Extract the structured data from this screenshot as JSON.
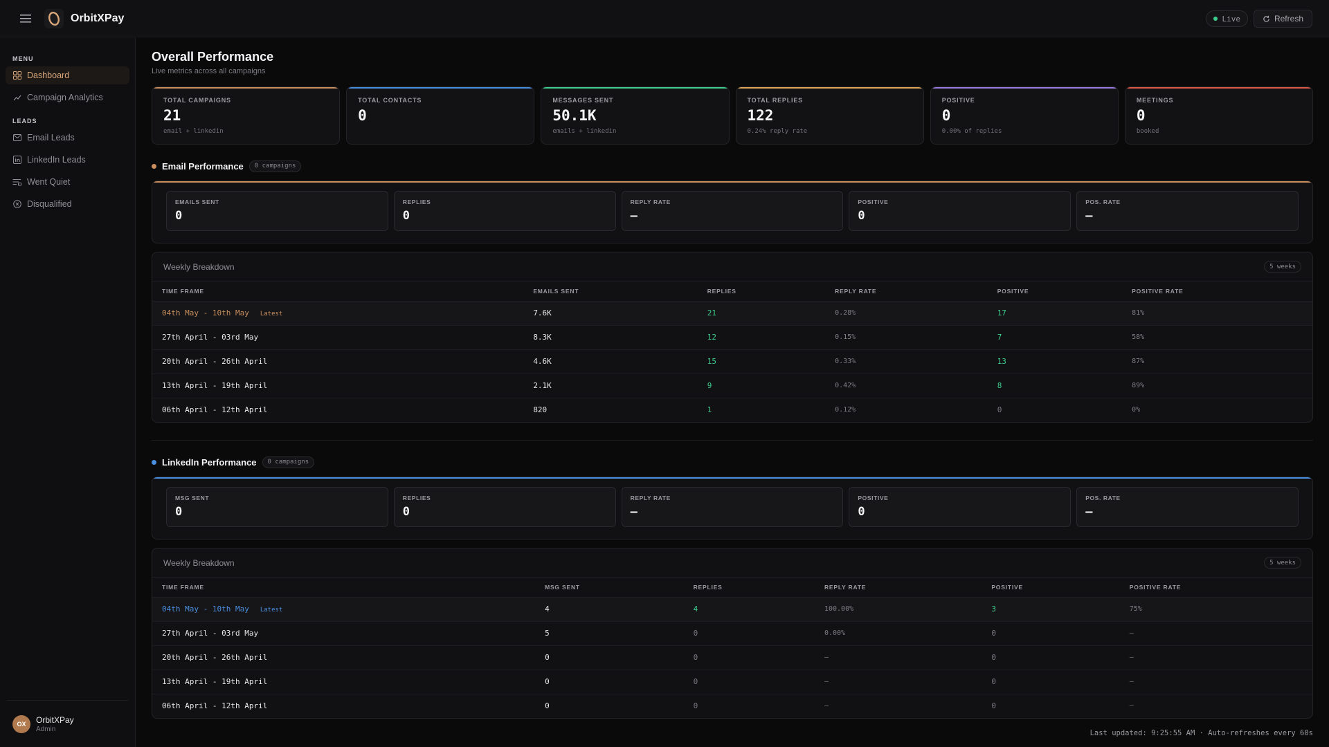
{
  "app": {
    "brand": "OrbitXPay"
  },
  "header": {
    "live_label": "Live",
    "refresh_label": "Refresh"
  },
  "sidebar": {
    "menu_label": "MENU",
    "leads_label": "LEADS",
    "menu_items": [
      {
        "label": "Dashboard",
        "icon": "grid-icon",
        "active": true
      },
      {
        "label": "Campaign Analytics",
        "icon": "trend-icon",
        "active": false
      }
    ],
    "lead_items": [
      {
        "label": "Email Leads",
        "icon": "mail-icon"
      },
      {
        "label": "LinkedIn Leads",
        "icon": "linkedin-icon"
      },
      {
        "label": "Went Quiet",
        "icon": "quiet-icon"
      },
      {
        "label": "Disqualified",
        "icon": "x-circle-icon"
      }
    ],
    "user": {
      "initials": "OX",
      "name": "OrbitXPay",
      "role": "Admin"
    }
  },
  "page": {
    "title": "Overall Performance",
    "subtitle": "Live metrics across all campaigns"
  },
  "stats": [
    {
      "label": "Total Campaigns",
      "value": "21",
      "sub": "email + linkedin",
      "accent": "#c98f5e"
    },
    {
      "label": "Total Contacts",
      "value": "0",
      "sub": "",
      "accent": "#4a8fe0"
    },
    {
      "label": "Messages Sent",
      "value": "50.1K",
      "sub": "emails + linkedin",
      "accent": "#3ecf8e"
    },
    {
      "label": "Total Replies",
      "value": "122",
      "sub": "0.24% reply rate",
      "accent": "#e0a95a"
    },
    {
      "label": "Positive",
      "value": "0",
      "sub": "0.00% of replies",
      "accent": "#9b7ce0"
    },
    {
      "label": "Meetings",
      "value": "0",
      "sub": "booked",
      "accent": "#e0594a"
    }
  ],
  "email": {
    "title": "Email Performance",
    "badge": "0 campaigns",
    "dot_color": "#c98f5e",
    "metrics": [
      {
        "label": "Emails Sent",
        "value": "0"
      },
      {
        "label": "Replies",
        "value": "0"
      },
      {
        "label": "Reply Rate",
        "value": "—"
      },
      {
        "label": "Positive",
        "value": "0"
      },
      {
        "label": "Pos. Rate",
        "value": "—"
      }
    ],
    "weekly_title": "Weekly Breakdown",
    "weeks_badge": "5 weeks",
    "latest_tag": "Latest",
    "columns": [
      "Time Frame",
      "Emails Sent",
      "Replies",
      "Reply Rate",
      "Positive",
      "Positive Rate"
    ],
    "rows": [
      [
        "04th May - 10th May",
        "7.6K",
        "21",
        "0.28%",
        "17",
        "81%"
      ],
      [
        "27th April - 03rd May",
        "8.3K",
        "12",
        "0.15%",
        "7",
        "58%"
      ],
      [
        "20th April - 26th April",
        "4.6K",
        "15",
        "0.33%",
        "13",
        "87%"
      ],
      [
        "13th April - 19th April",
        "2.1K",
        "9",
        "0.42%",
        "8",
        "89%"
      ],
      [
        "06th April - 12th April",
        "820",
        "1",
        "0.12%",
        "0",
        "0%"
      ]
    ]
  },
  "linkedin": {
    "title": "LinkedIn Performance",
    "badge": "0 campaigns",
    "dot_color": "#4a8fe0",
    "metrics": [
      {
        "label": "Msg Sent",
        "value": "0"
      },
      {
        "label": "Replies",
        "value": "0"
      },
      {
        "label": "Reply Rate",
        "value": "—"
      },
      {
        "label": "Positive",
        "value": "0"
      },
      {
        "label": "Pos. Rate",
        "value": "—"
      }
    ],
    "weekly_title": "Weekly Breakdown",
    "weeks_badge": "5 weeks",
    "latest_tag": "Latest",
    "columns": [
      "Time Frame",
      "Msg Sent",
      "Replies",
      "Reply Rate",
      "Positive",
      "Positive Rate"
    ],
    "rows": [
      [
        "04th May - 10th May",
        "4",
        "4",
        "100.00%",
        "3",
        "75%"
      ],
      [
        "27th April - 03rd May",
        "5",
        "0",
        "0.00%",
        "0",
        "—"
      ],
      [
        "20th April - 26th April",
        "0",
        "0",
        "—",
        "0",
        "—"
      ],
      [
        "13th April - 19th April",
        "0",
        "0",
        "—",
        "0",
        "—"
      ],
      [
        "06th April - 12th April",
        "0",
        "0",
        "—",
        "0",
        "—"
      ]
    ]
  },
  "footer": {
    "last_updated": "Last updated: 9:25:55 AM · Auto-refreshes every 60s"
  }
}
